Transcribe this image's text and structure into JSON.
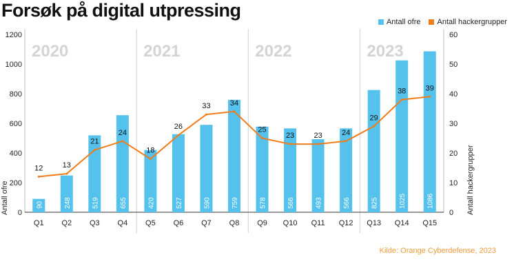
{
  "colors": {
    "bar": "#55c2ee",
    "line": "#f07c1b",
    "source": "#f39a3c",
    "year_label": "#d4d4d4"
  },
  "source": "Kilde: Orange Cyberdefense, 2023",
  "chart_data": {
    "type": "bar",
    "title": "Forsøk på digital utpressing",
    "categories": [
      "Q1",
      "Q2",
      "Q3",
      "Q4",
      "Q5",
      "Q6",
      "Q7",
      "Q8",
      "Q9",
      "Q10",
      "Q11",
      "Q12",
      "Q13",
      "Q14",
      "Q15"
    ],
    "years": [
      {
        "label": "2020",
        "start": 0,
        "end": 3
      },
      {
        "label": "2021",
        "start": 4,
        "end": 7
      },
      {
        "label": "2022",
        "start": 8,
        "end": 11
      },
      {
        "label": "2023",
        "start": 12,
        "end": 14
      }
    ],
    "series": [
      {
        "name": "Antall ofre",
        "type": "bar",
        "axis": "left",
        "values": [
          90,
          248,
          519,
          655,
          420,
          527,
          590,
          759,
          578,
          566,
          493,
          566,
          825,
          1025,
          1086
        ]
      },
      {
        "name": "Antall hackergrupper",
        "type": "line",
        "axis": "right",
        "values": [
          12,
          13,
          21,
          24,
          18,
          26,
          33,
          34,
          25,
          23,
          23,
          24,
          29,
          38,
          39
        ]
      }
    ],
    "ylabel": "Antall ofre",
    "y2label": "Antall hackergrupper",
    "ylim": [
      0,
      1200
    ],
    "y2lim": [
      0,
      60
    ],
    "yticks": [
      0,
      200,
      400,
      600,
      800,
      1000,
      1200
    ],
    "y2ticks": [
      0,
      10,
      20,
      30,
      40,
      50,
      60
    ],
    "legend_position": "top-right",
    "grid": false
  }
}
